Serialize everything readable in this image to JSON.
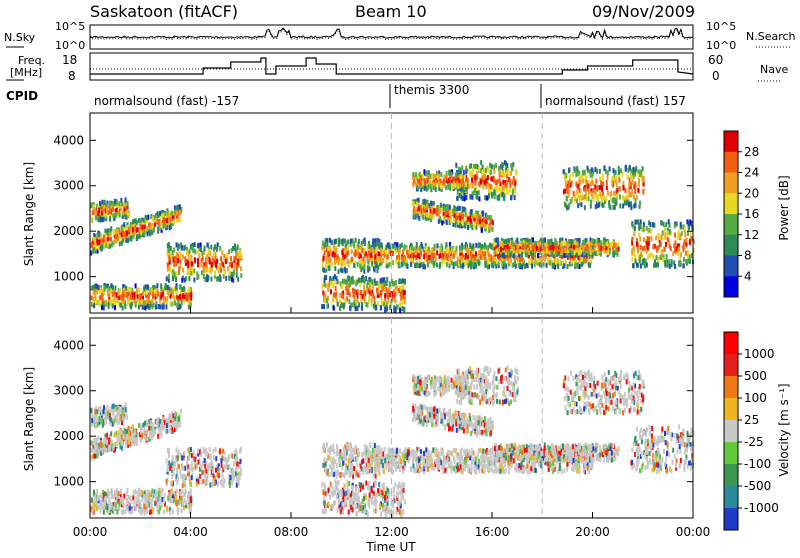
{
  "header": {
    "title": "Saskatoon (fitACF)",
    "beam": "Beam 10",
    "date": "09/Nov/2009"
  },
  "noise_panel": {
    "left_label": "N.Sky",
    "left_ticks": [
      "10^5",
      "10^0"
    ],
    "right_ticks": [
      "10^5",
      "10^0"
    ],
    "right_label": "N.Search"
  },
  "freq_panel": {
    "left_label_1": "Freq.",
    "left_label_2": "[MHz]",
    "left_ticks": [
      "18",
      "8"
    ],
    "right_ticks": [
      "60",
      "0"
    ],
    "right_label": "Nave"
  },
  "cpid": {
    "label": "CPID",
    "segments": [
      "normalsound (fast) -157",
      "themis 3300",
      "normalsound (fast) 157"
    ]
  },
  "chart_data": [
    {
      "type": "heatmap",
      "quantity": "Power",
      "ylabel": "Slant Range [km]",
      "yticks": [
        1000,
        2000,
        3000,
        4000
      ],
      "ylim": [
        200,
        4600
      ],
      "xticks": [
        "00:00",
        "04:00",
        "08:00",
        "12:00",
        "16:00",
        "20:00",
        "00:00"
      ],
      "xlim_hours": [
        0,
        24
      ],
      "colorbar_label": "Power [dB]",
      "colorbar_ticks": [
        "28",
        "24",
        "20",
        "16",
        "12",
        "8",
        "4"
      ],
      "colors": [
        "#0000e0",
        "#1f4fb0",
        "#2e8b57",
        "#55aa44",
        "#e8d820",
        "#f0a020",
        "#f06010",
        "#e00000"
      ]
    },
    {
      "type": "heatmap",
      "quantity": "Velocity",
      "ylabel": "Slant Range [km]",
      "yticks": [
        1000,
        2000,
        3000,
        4000
      ],
      "ylim": [
        200,
        4600
      ],
      "xticks": [
        "00:00",
        "04:00",
        "08:00",
        "12:00",
        "16:00",
        "20:00",
        "00:00"
      ],
      "xlabel": "Time UT",
      "colorbar_label": "Velocity [m s⁻¹]",
      "colorbar_ticks": [
        "1000",
        "500",
        "100",
        "25",
        "-25",
        "-100",
        "-500",
        "-1000"
      ],
      "colors": [
        "#1e3cc8",
        "#2a8c9a",
        "#3c9650",
        "#64c83c",
        "#c8c8c8",
        "#f0b41e",
        "#f07814",
        "#e61e1e",
        "#ff0000"
      ]
    }
  ]
}
